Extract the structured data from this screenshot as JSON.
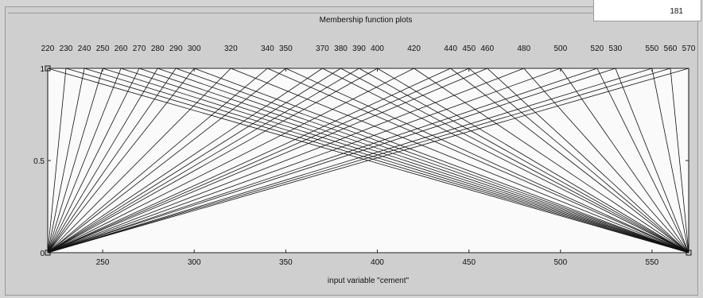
{
  "header": {
    "title": "Membership function plots",
    "value": "181"
  },
  "chart_data": {
    "type": "line",
    "title": "Membership function plots",
    "xlabel": "input variable \"cement\"",
    "ylabel": "",
    "xlim": [
      220,
      570
    ],
    "ylim": [
      0,
      1
    ],
    "x_ticks": [
      250,
      300,
      350,
      400,
      450,
      500,
      550
    ],
    "y_ticks": [
      0,
      0.5,
      1
    ],
    "y_tick_labels": [
      "0",
      "0.5",
      "1"
    ],
    "mf_type": "trimf",
    "mf_peaks": [
      220,
      230,
      240,
      250,
      260,
      270,
      280,
      290,
      300,
      320,
      340,
      350,
      370,
      380,
      390,
      400,
      420,
      440,
      450,
      460,
      480,
      500,
      520,
      530,
      550,
      560,
      570
    ],
    "mf_labels": [
      "220",
      "230",
      "240",
      "250",
      "260",
      "270",
      "280",
      "290",
      "300",
      "320",
      "340",
      "350",
      "370",
      "380",
      "390",
      "400",
      "420",
      "440",
      "450",
      "460",
      "480",
      "500",
      "520",
      "530",
      "550",
      "560",
      "570"
    ],
    "mf_support": [
      220,
      570
    ],
    "grid": false
  }
}
